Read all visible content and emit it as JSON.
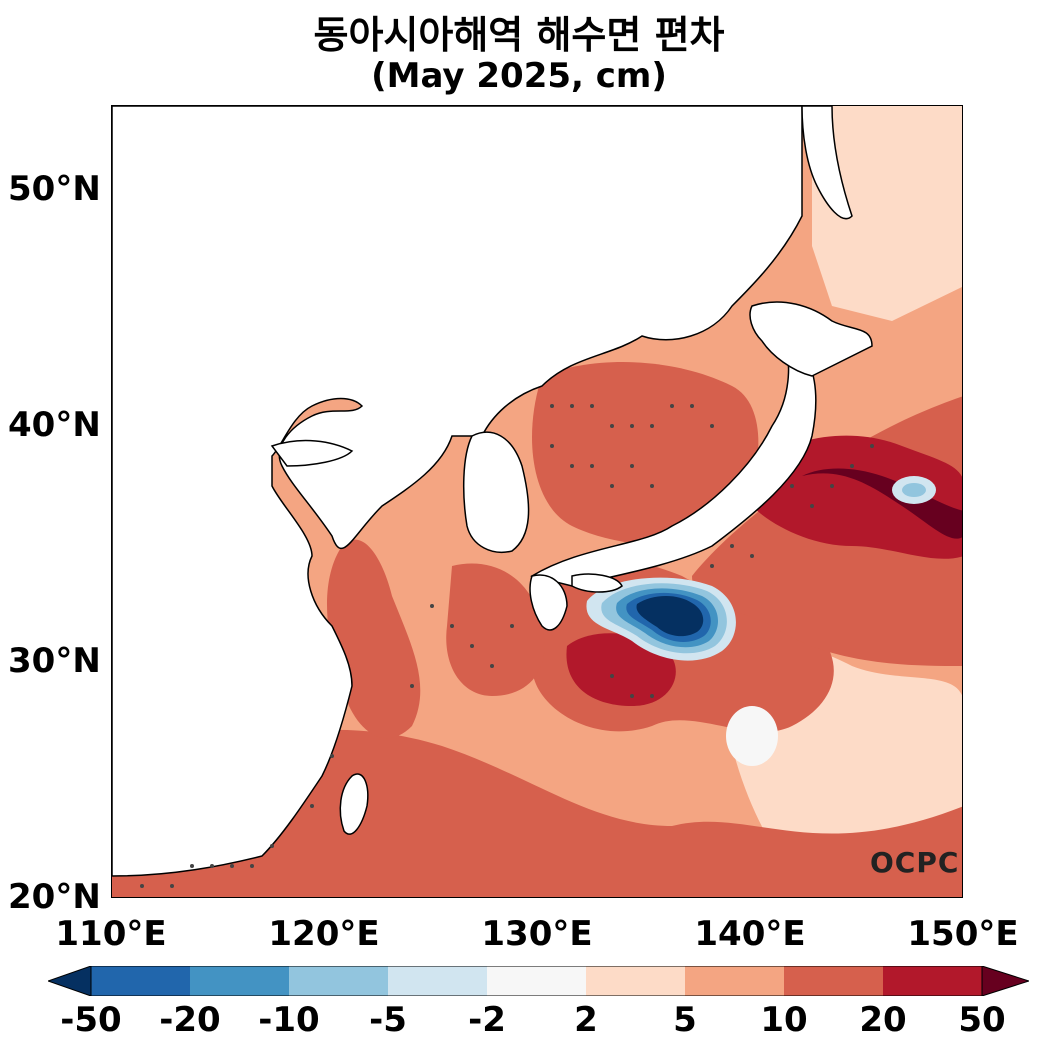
{
  "title": "동아시아해역 해수면 편차",
  "subtitle": "(May 2025, cm)",
  "map": {
    "lat_ticks": [
      "50°N",
      "40°N",
      "30°N",
      "20°N"
    ],
    "lon_ticks": [
      "110°E",
      "120°E",
      "130°E",
      "140°E",
      "150°E"
    ],
    "extent": {
      "lon": [
        110,
        150
      ],
      "lat": [
        20,
        53.5
      ]
    },
    "stippling": "statistically significant regions marked with dots"
  },
  "colorbar": {
    "ticks": [
      "-50",
      "-20",
      "-10",
      "-5",
      "-2",
      "2",
      "5",
      "10",
      "20",
      "50"
    ],
    "colors": [
      "#053061",
      "#2166ac",
      "#4393c3",
      "#92c5de",
      "#d1e5f0",
      "#f7f7f7",
      "#fddbc7",
      "#f4a582",
      "#d6604d",
      "#b2182b",
      "#67001f"
    ]
  },
  "logo": "OCPC"
}
